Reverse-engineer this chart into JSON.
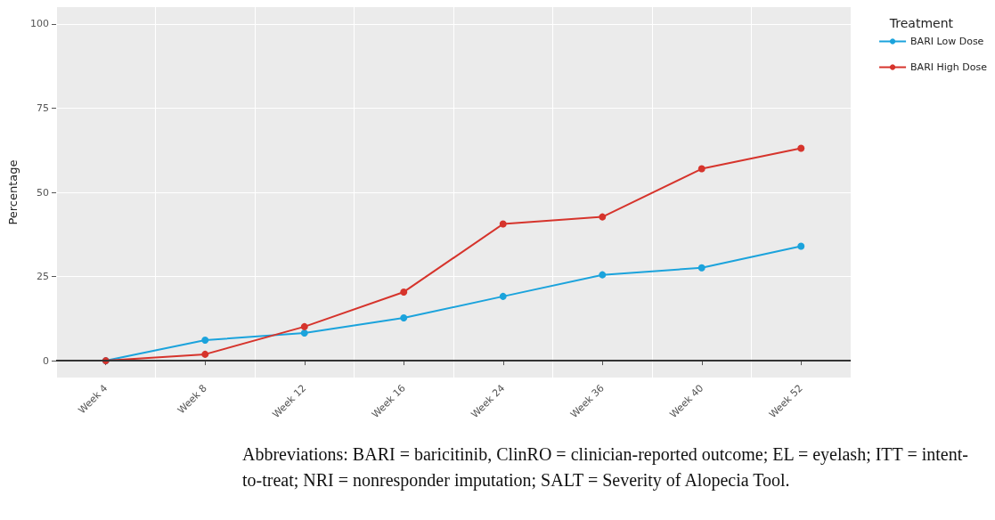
{
  "chart_data": {
    "type": "line",
    "ylabel": "Percentage",
    "legend_title": "Treatment",
    "categories": [
      "Week 4",
      "Week 8",
      "Week 12",
      "Week 16",
      "Week 24",
      "Week 36",
      "Week 40",
      "Week 52"
    ],
    "series": [
      {
        "name": "BARI Low Dose",
        "color": "#1ba3dc",
        "values": [
          0,
          6.1,
          8.2,
          12.7,
          19.1,
          25.5,
          27.6,
          34.0
        ]
      },
      {
        "name": "BARI High Dose",
        "color": "#d6342c",
        "values": [
          0,
          1.9,
          10.1,
          20.4,
          40.6,
          42.7,
          57.0,
          63.1
        ]
      }
    ],
    "ylim": [
      -5,
      105
    ],
    "yticks": [
      0,
      25,
      50,
      75,
      100
    ],
    "grid": true,
    "legend": "top right",
    "marker": "circle",
    "line_style": "solid",
    "ref_lines": [
      {
        "axis": "y",
        "value": 0,
        "color": "#333333",
        "line_style": "solid"
      }
    ],
    "annotations": [
      "Abbreviations: BARI = baricitinib, ClinRO = clinician-reported outcome; EL = eyelash; ITT = intent-to-treat; NRI = nonresponder imputation; SALT = Severity of Alopecia Tool."
    ]
  }
}
